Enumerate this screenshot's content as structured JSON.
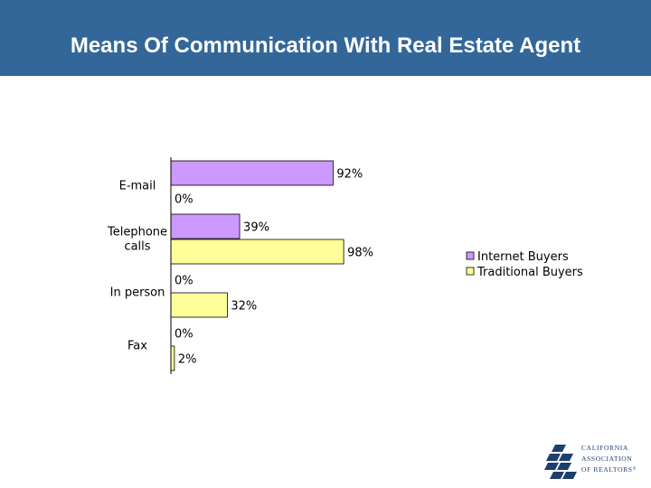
{
  "title": "Means Of Communication With Real Estate Agent",
  "colors": {
    "header": "#336799",
    "internet": "#cc99ff",
    "traditional": "#ffff99",
    "text": "#000000"
  },
  "chart_data": {
    "type": "bar",
    "orientation": "horizontal",
    "categories": [
      "E-mail",
      "Telephone calls",
      "In person",
      "Fax"
    ],
    "category_lines": [
      [
        "E-mail"
      ],
      [
        "Telephone",
        "calls"
      ],
      [
        "In person"
      ],
      [
        "Fax"
      ]
    ],
    "series": [
      {
        "name": "Internet Buyers",
        "color": "#cc99ff",
        "values": [
          92,
          39,
          0,
          0
        ],
        "labels": [
          "92%",
          "39%",
          "0%",
          "0%"
        ]
      },
      {
        "name": "Traditional Buyers",
        "color": "#ffff99",
        "values": [
          0,
          98,
          32,
          2
        ],
        "labels": [
          "0%",
          "98%",
          "32%",
          "2%"
        ]
      }
    ],
    "unit": "%",
    "xlim": [
      0,
      100
    ],
    "grid": false,
    "legend_position": "right",
    "title": "",
    "xlabel": "",
    "ylabel": ""
  },
  "logo": {
    "lines": [
      "CALIFORNIA",
      "ASSOCIATION",
      "OF REALTORS"
    ],
    "mark": "®"
  }
}
